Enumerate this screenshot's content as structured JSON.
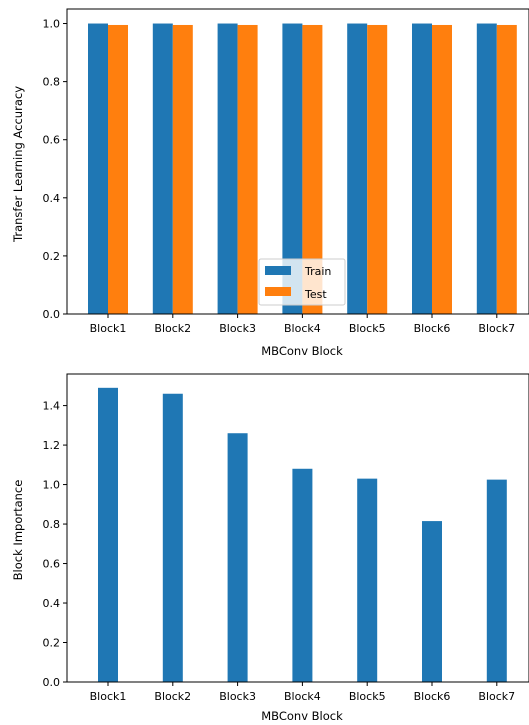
{
  "chart_data": [
    {
      "type": "bar",
      "categories": [
        "Block1",
        "Block2",
        "Block3",
        "Block4",
        "Block5",
        "Block6",
        "Block7"
      ],
      "series": [
        {
          "name": "Train",
          "color": "#1f77b4",
          "values": [
            1.0,
            1.0,
            1.0,
            1.0,
            1.0,
            1.0,
            1.0
          ]
        },
        {
          "name": "Test",
          "color": "#ff7f0e",
          "values": [
            0.995,
            0.995,
            0.995,
            0.995,
            0.995,
            0.995,
            0.995
          ]
        }
      ],
      "xlabel": "MBConv Block",
      "ylabel": "Transfer Learning Accuracy",
      "ylim": [
        0,
        1.05
      ],
      "yticks": [
        0.0,
        0.2,
        0.4,
        0.6,
        0.8,
        1.0
      ],
      "ytick_labels": [
        "0.0",
        "0.2",
        "0.4",
        "0.6",
        "0.8",
        "1.0"
      ],
      "grid": false,
      "legend": {
        "placement": "lower-center",
        "entries": [
          "Train",
          "Test"
        ]
      }
    },
    {
      "type": "bar",
      "categories": [
        "Block1",
        "Block2",
        "Block3",
        "Block4",
        "Block5",
        "Block6",
        "Block7"
      ],
      "series": [
        {
          "color": "#1f77b4",
          "values": [
            1.49,
            1.46,
            1.26,
            1.08,
            1.03,
            0.815,
            1.025
          ]
        }
      ],
      "xlabel": "MBConv Block",
      "ylabel": "Block Importance",
      "ylim": [
        0,
        1.56
      ],
      "yticks": [
        0.0,
        0.2,
        0.4,
        0.6,
        0.8,
        1.0,
        1.2,
        1.4
      ],
      "ytick_labels": [
        "0.0",
        "0.2",
        "0.4",
        "0.6",
        "0.8",
        "1.0",
        "1.2",
        "1.4"
      ],
      "grid": false
    }
  ]
}
